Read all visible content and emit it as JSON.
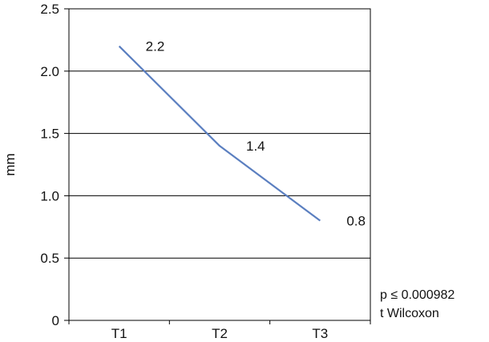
{
  "chart_data": {
    "type": "line",
    "x": [
      "T1",
      "T2",
      "T3"
    ],
    "values": [
      2.2,
      1.4,
      0.8
    ],
    "data_labels": [
      "2.2",
      "1.4",
      "0.8"
    ],
    "ylabel": "mm",
    "xlabel": "",
    "title": "",
    "ylim": [
      0,
      2.5
    ],
    "yticks": [
      0,
      0.5,
      1.0,
      1.5,
      2.0,
      2.5
    ],
    "ytick_labels": [
      "0",
      "0.5",
      "1.0",
      "1.5",
      "2.0",
      "2.5"
    ],
    "grid": "horizontal",
    "legend": "none",
    "line_color": "#5b7fc0",
    "annotations": [
      "p ≤ 0.000982",
      "t Wilcoxon"
    ]
  }
}
